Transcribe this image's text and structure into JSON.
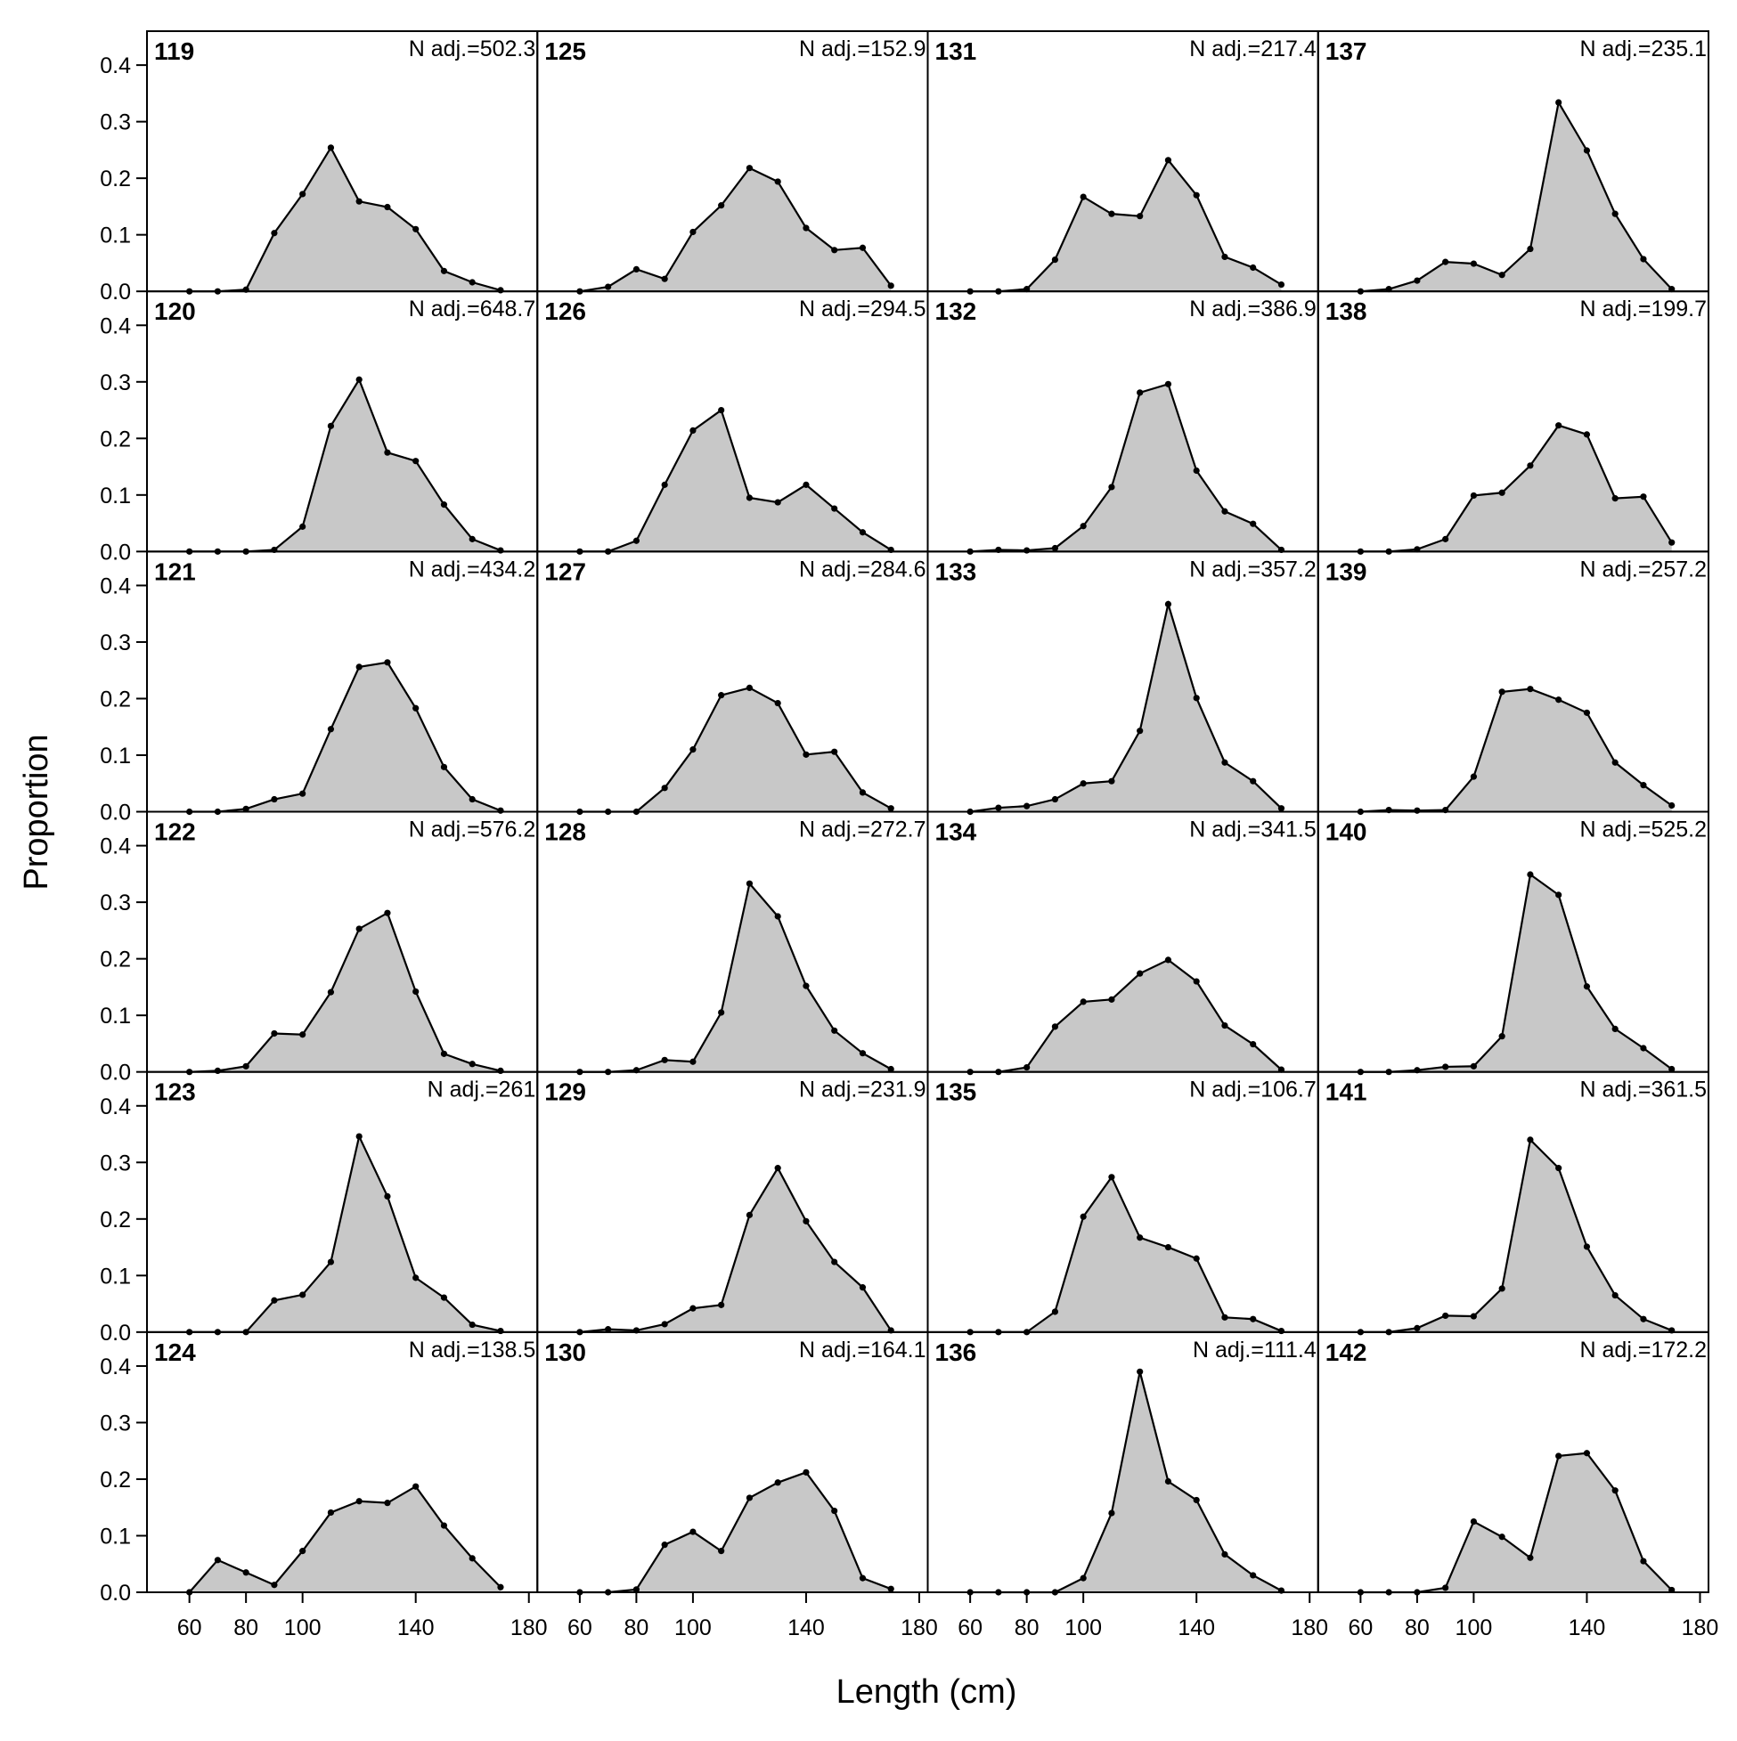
{
  "chart_data": {
    "type": "area",
    "xlabel": "Length (cm)",
    "ylabel": "Proportion",
    "xlim": [
      45,
      183
    ],
    "ylim": [
      0,
      0.46
    ],
    "x_ticks": [
      60,
      80,
      100,
      140,
      180
    ],
    "y_ticks": [
      0.0,
      0.1,
      0.2,
      0.3,
      0.4
    ],
    "y_tick_labels": [
      "0.0",
      "0.1",
      "0.2",
      "0.3",
      "0.4"
    ],
    "x": [
      60,
      70,
      80,
      90,
      100,
      110,
      120,
      130,
      140,
      150,
      160,
      170
    ],
    "fill_color": "#c8c8c8",
    "line_color": "#000000",
    "grid": false,
    "layout": {
      "rows": 6,
      "cols": 4,
      "order": "column-major"
    },
    "panels": [
      {
        "id": "119",
        "n_label": "N adj.=502.3",
        "values": [
          0,
          0,
          0.003,
          0.103,
          0.172,
          0.254,
          0.159,
          0.149,
          0.11,
          0.036,
          0.016,
          0.002
        ]
      },
      {
        "id": "120",
        "n_label": "N adj.=648.7",
        "values": [
          0,
          0,
          0,
          0.003,
          0.044,
          0.222,
          0.304,
          0.175,
          0.16,
          0.083,
          0.022,
          0.002
        ]
      },
      {
        "id": "121",
        "n_label": "N adj.=434.2",
        "values": [
          0,
          0,
          0.005,
          0.022,
          0.032,
          0.146,
          0.256,
          0.264,
          0.183,
          0.079,
          0.022,
          0.002
        ]
      },
      {
        "id": "122",
        "n_label": "N adj.=576.2",
        "values": [
          0,
          0.002,
          0.01,
          0.068,
          0.066,
          0.141,
          0.253,
          0.281,
          0.142,
          0.032,
          0.014,
          0.002
        ]
      },
      {
        "id": "123",
        "n_label": "N adj.=261",
        "values": [
          0,
          0,
          0,
          0.056,
          0.066,
          0.124,
          0.346,
          0.24,
          0.096,
          0.061,
          0.013,
          0.002
        ]
      },
      {
        "id": "124",
        "n_label": "N adj.=138.5",
        "values": [
          0,
          0.057,
          0.035,
          0.013,
          0.073,
          0.141,
          0.161,
          0.158,
          0.187,
          0.118,
          0.06,
          0.009
        ]
      },
      {
        "id": "125",
        "n_label": "N adj.=152.9",
        "values": [
          0,
          0.008,
          0.039,
          0.022,
          0.105,
          0.152,
          0.218,
          0.194,
          0.112,
          0.073,
          0.077,
          0.01
        ]
      },
      {
        "id": "126",
        "n_label": "N adj.=294.5",
        "values": [
          0,
          0,
          0.019,
          0.118,
          0.214,
          0.25,
          0.095,
          0.087,
          0.118,
          0.076,
          0.034,
          0.003
        ]
      },
      {
        "id": "127",
        "n_label": "N adj.=284.6",
        "values": [
          0,
          0,
          0,
          0.042,
          0.11,
          0.206,
          0.219,
          0.192,
          0.101,
          0.106,
          0.034,
          0.006
        ]
      },
      {
        "id": "128",
        "n_label": "N adj.=272.7",
        "values": [
          0,
          0,
          0.003,
          0.021,
          0.018,
          0.105,
          0.333,
          0.275,
          0.152,
          0.073,
          0.033,
          0.005
        ]
      },
      {
        "id": "129",
        "n_label": "N adj.=231.9",
        "values": [
          0,
          0.005,
          0.003,
          0.014,
          0.042,
          0.048,
          0.207,
          0.29,
          0.196,
          0.124,
          0.079,
          0.003
        ]
      },
      {
        "id": "130",
        "n_label": "N adj.=164.1",
        "values": [
          0,
          0,
          0.005,
          0.084,
          0.107,
          0.073,
          0.167,
          0.194,
          0.212,
          0.144,
          0.025,
          0.006
        ]
      },
      {
        "id": "131",
        "n_label": "N adj.=217.4",
        "values": [
          0,
          0,
          0.004,
          0.056,
          0.167,
          0.137,
          0.133,
          0.232,
          0.17,
          0.061,
          0.042,
          0.012
        ]
      },
      {
        "id": "132",
        "n_label": "N adj.=386.9",
        "values": [
          0,
          0.003,
          0.002,
          0.006,
          0.045,
          0.114,
          0.281,
          0.296,
          0.143,
          0.071,
          0.049,
          0.003
        ]
      },
      {
        "id": "133",
        "n_label": "N adj.=357.2",
        "values": [
          0,
          0.007,
          0.01,
          0.022,
          0.05,
          0.054,
          0.143,
          0.367,
          0.201,
          0.087,
          0.054,
          0.006
        ]
      },
      {
        "id": "134",
        "n_label": "N adj.=341.5",
        "values": [
          0,
          0,
          0.008,
          0.08,
          0.124,
          0.128,
          0.174,
          0.198,
          0.16,
          0.082,
          0.049,
          0.004
        ]
      },
      {
        "id": "135",
        "n_label": "N adj.=106.7",
        "values": [
          0,
          0,
          0,
          0.036,
          0.204,
          0.274,
          0.167,
          0.15,
          0.13,
          0.026,
          0.023,
          0.002
        ]
      },
      {
        "id": "136",
        "n_label": "N adj.=111.4",
        "values": [
          0,
          0,
          0,
          0,
          0.025,
          0.14,
          0.39,
          0.196,
          0.163,
          0.067,
          0.03,
          0.003
        ]
      },
      {
        "id": "137",
        "n_label": "N adj.=235.1",
        "values": [
          0,
          0.004,
          0.019,
          0.052,
          0.049,
          0.029,
          0.075,
          0.334,
          0.249,
          0.137,
          0.057,
          0.004
        ]
      },
      {
        "id": "138",
        "n_label": "N adj.=199.7",
        "values": [
          0,
          0,
          0.004,
          0.022,
          0.099,
          0.104,
          0.152,
          0.223,
          0.207,
          0.094,
          0.097,
          0.016
        ]
      },
      {
        "id": "139",
        "n_label": "N adj.=257.2",
        "values": [
          0,
          0.003,
          0.002,
          0.003,
          0.062,
          0.212,
          0.217,
          0.198,
          0.175,
          0.087,
          0.047,
          0.011
        ]
      },
      {
        "id": "140",
        "n_label": "N adj.=525.2",
        "values": [
          0,
          0,
          0.003,
          0.009,
          0.01,
          0.063,
          0.349,
          0.313,
          0.151,
          0.076,
          0.042,
          0.005
        ]
      },
      {
        "id": "141",
        "n_label": "N adj.=361.5",
        "values": [
          0,
          0,
          0.007,
          0.029,
          0.028,
          0.077,
          0.34,
          0.29,
          0.151,
          0.065,
          0.023,
          0.003
        ]
      },
      {
        "id": "142",
        "n_label": "N adj.=172.2",
        "values": [
          0,
          0,
          0,
          0.008,
          0.125,
          0.098,
          0.061,
          0.241,
          0.246,
          0.18,
          0.055,
          0.004
        ]
      }
    ]
  }
}
